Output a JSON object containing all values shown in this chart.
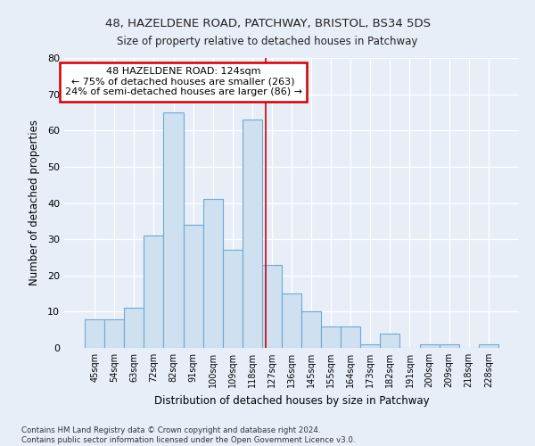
{
  "title1": "48, HAZELDENE ROAD, PATCHWAY, BRISTOL, BS34 5DS",
  "title2": "Size of property relative to detached houses in Patchway",
  "xlabel": "Distribution of detached houses by size in Patchway",
  "ylabel": "Number of detached properties",
  "categories": [
    "45sqm",
    "54sqm",
    "63sqm",
    "72sqm",
    "82sqm",
    "91sqm",
    "100sqm",
    "109sqm",
    "118sqm",
    "127sqm",
    "136sqm",
    "145sqm",
    "155sqm",
    "164sqm",
    "173sqm",
    "182sqm",
    "191sqm",
    "200sqm",
    "209sqm",
    "218sqm",
    "228sqm"
  ],
  "values": [
    8,
    8,
    11,
    31,
    65,
    34,
    41,
    27,
    63,
    23,
    15,
    10,
    6,
    6,
    1,
    4,
    0,
    1,
    1,
    0,
    1
  ],
  "bar_color": "#cfe0f0",
  "bar_edge_color": "#6aaad4",
  "vline_color": "#cc0000",
  "vline_x": 8.67,
  "annotation_box_text": "48 HAZELDENE ROAD: 124sqm\n← 75% of detached houses are smaller (263)\n24% of semi-detached houses are larger (86) →",
  "annotation_box_edge_color": "#cc0000",
  "ylim": [
    0,
    80
  ],
  "yticks": [
    0,
    10,
    20,
    30,
    40,
    50,
    60,
    70,
    80
  ],
  "fig_bg_color": "#e8eef8",
  "plot_bg_color": "#e8eef8",
  "grid_color": "#ffffff",
  "footer1": "Contains HM Land Registry data © Crown copyright and database right 2024.",
  "footer2": "Contains public sector information licensed under the Open Government Licence v3.0."
}
